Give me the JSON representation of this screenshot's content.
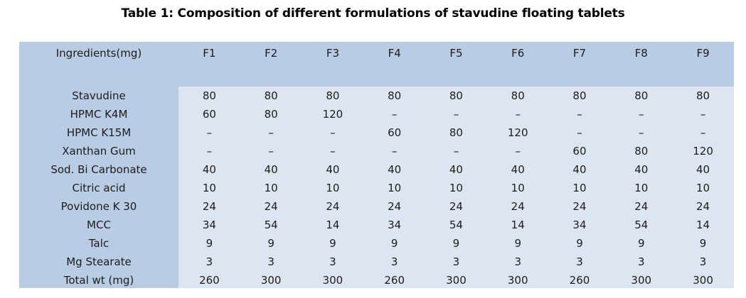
{
  "title": "Table 1: Composition of different formulations of stavudine floating tablets",
  "colors": {
    "header_bg": "#b8cce4",
    "label_column_bg": "#b8cce4",
    "data_cell_bg": "#dce6f1",
    "text": "#1c1c1c",
    "page_bg": "#ffffff"
  },
  "table": {
    "columns": [
      "Ingredients(mg)",
      "F1",
      "F2",
      "F3",
      "F4",
      "F5",
      "F6",
      "F7",
      "F8",
      "F9"
    ],
    "rows": [
      {
        "label": "Stavudine",
        "values": [
          "80",
          "80",
          "80",
          "80",
          "80",
          "80",
          "80",
          "80",
          "80"
        ]
      },
      {
        "label": "HPMC K4M",
        "values": [
          "60",
          "80",
          "120",
          "–",
          "–",
          "–",
          "–",
          "–",
          "–"
        ]
      },
      {
        "label": "HPMC K15M",
        "values": [
          "–",
          "–",
          "–",
          "60",
          "80",
          "120",
          "–",
          "–",
          "–"
        ]
      },
      {
        "label": "Xanthan Gum",
        "values": [
          "–",
          "–",
          "–",
          "–",
          "–",
          "–",
          "60",
          "80",
          "120"
        ]
      },
      {
        "label": "Sod. Bi Carbonate",
        "values": [
          "40",
          "40",
          "40",
          "40",
          "40",
          "40",
          "40",
          "40",
          "40"
        ]
      },
      {
        "label": "Citric acid",
        "values": [
          "10",
          "10",
          "10",
          "10",
          "10",
          "10",
          "10",
          "10",
          "10"
        ]
      },
      {
        "label": "Povidone K 30",
        "values": [
          "24",
          "24",
          "24",
          "24",
          "24",
          "24",
          "24",
          "24",
          "24"
        ]
      },
      {
        "label": "MCC",
        "values": [
          "34",
          "54",
          "14",
          "34",
          "54",
          "14",
          "34",
          "54",
          "14"
        ]
      },
      {
        "label": "Talc",
        "values": [
          "9",
          "9",
          "9",
          "9",
          "9",
          "9",
          "9",
          "9",
          "9"
        ]
      },
      {
        "label": "Mg Stearate",
        "values": [
          "3",
          "3",
          "3",
          "3",
          "3",
          "3",
          "3",
          "3",
          "3"
        ]
      },
      {
        "label": "Total wt (mg)",
        "values": [
          "260",
          "300",
          "300",
          "260",
          "300",
          "300",
          "260",
          "300",
          "300"
        ]
      }
    ]
  }
}
